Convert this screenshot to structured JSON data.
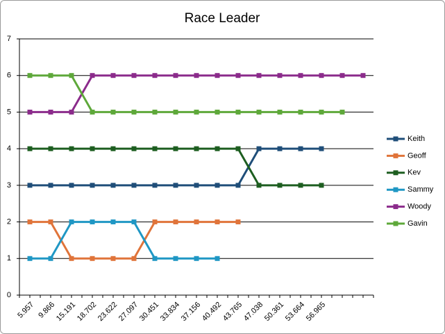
{
  "chart_data": {
    "type": "line",
    "title": "Race Leader",
    "categories": [
      "5.957",
      "9.866",
      "15.191",
      "18.702",
      "23.622",
      "27.097",
      "30.451",
      "33.834",
      "37.156",
      "40.492",
      "43.765",
      "47.038",
      "50.361",
      "53.664",
      "56.965",
      null,
      null
    ],
    "series": [
      {
        "name": "Keith",
        "color": "#1f4e79",
        "values": [
          3,
          3,
          3,
          3,
          3,
          3,
          3,
          3,
          3,
          3,
          3,
          4,
          4,
          4,
          4,
          null,
          null
        ]
      },
      {
        "name": "Geoff",
        "color": "#e0743a",
        "values": [
          2,
          2,
          1,
          1,
          1,
          1,
          2,
          2,
          2,
          2,
          2,
          null,
          null,
          null,
          null,
          null,
          null
        ]
      },
      {
        "name": "Kev",
        "color": "#1d5e20",
        "values": [
          4,
          4,
          4,
          4,
          4,
          4,
          4,
          4,
          4,
          4,
          4,
          3,
          3,
          3,
          3,
          null,
          null
        ]
      },
      {
        "name": "Sammy",
        "color": "#1f97c4",
        "values": [
          1,
          1,
          2,
          2,
          2,
          2,
          1,
          1,
          1,
          1,
          null,
          null,
          null,
          null,
          null,
          null,
          null
        ]
      },
      {
        "name": "Woody",
        "color": "#8b2b8b",
        "values": [
          5,
          5,
          5,
          6,
          6,
          6,
          6,
          6,
          6,
          6,
          6,
          6,
          6,
          6,
          6,
          6,
          6
        ]
      },
      {
        "name": "Gavin",
        "color": "#5ea83a",
        "values": [
          6,
          6,
          6,
          5,
          5,
          5,
          5,
          5,
          5,
          5,
          5,
          5,
          5,
          5,
          5,
          5,
          null
        ]
      }
    ],
    "ylim": [
      0,
      7
    ],
    "yticks": [
      0,
      1,
      2,
      3,
      4,
      5,
      6,
      7
    ],
    "grid": true,
    "legend": "right"
  }
}
